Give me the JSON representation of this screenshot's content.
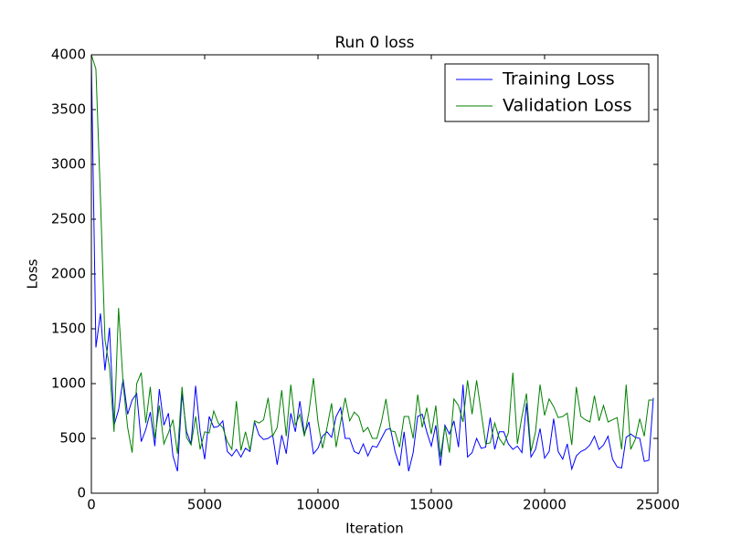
{
  "chart_data": {
    "type": "line",
    "title": "Run 0 loss",
    "x_label": "Iteration",
    "y_label": "Loss",
    "x": [
      0,
      200,
      400,
      600,
      800,
      1000,
      1200,
      1400,
      1600,
      1800,
      2000,
      2200,
      2400,
      2600,
      2800,
      3000,
      3200,
      3400,
      3600,
      3800,
      4000,
      4200,
      4400,
      4600,
      4800,
      5000,
      5200,
      5400,
      5600,
      5800,
      6000,
      6200,
      6400,
      6600,
      6800,
      7000,
      7200,
      7400,
      7600,
      7800,
      8000,
      8200,
      8400,
      8600,
      8800,
      9000,
      9200,
      9400,
      9600,
      9800,
      10000,
      10200,
      10400,
      10600,
      10800,
      11000,
      11200,
      11400,
      11600,
      11800,
      12000,
      12200,
      12400,
      12600,
      12800,
      13000,
      13200,
      13400,
      13600,
      13800,
      14000,
      14200,
      14400,
      14600,
      14800,
      15000,
      15200,
      15400,
      15600,
      15800,
      16000,
      16200,
      16400,
      16600,
      16800,
      17000,
      17200,
      17400,
      17600,
      17800,
      18000,
      18200,
      18400,
      18600,
      18800,
      19000,
      19200,
      19400,
      19600,
      19800,
      20000,
      20200,
      20400,
      20600,
      20800,
      21000,
      21200,
      21400,
      21600,
      21800,
      22000,
      22200,
      22400,
      22600,
      22800,
      23000,
      23200,
      23400,
      23600,
      23800,
      24000,
      24200,
      24400,
      24600,
      24800
    ],
    "series": [
      {
        "name": "Training Loss",
        "color": "#0000ff",
        "values": [
          3950,
          1330,
          1640,
          1120,
          1510,
          620,
          760,
          1040,
          720,
          850,
          910,
          470,
          580,
          740,
          430,
          950,
          620,
          730,
          340,
          200,
          910,
          560,
          450,
          980,
          560,
          310,
          700,
          600,
          610,
          660,
          380,
          340,
          400,
          330,
          410,
          380,
          650,
          530,
          490,
          500,
          530,
          260,
          530,
          360,
          730,
          560,
          840,
          540,
          650,
          360,
          410,
          520,
          560,
          510,
          700,
          780,
          500,
          500,
          380,
          360,
          450,
          340,
          430,
          420,
          500,
          580,
          590,
          380,
          250,
          560,
          200,
          370,
          700,
          720,
          560,
          430,
          620,
          250,
          620,
          540,
          660,
          420,
          990,
          330,
          370,
          500,
          410,
          420,
          690,
          400,
          560,
          560,
          450,
          400,
          430,
          370,
          820,
          330,
          400,
          590,
          320,
          380,
          680,
          380,
          310,
          450,
          220,
          340,
          380,
          400,
          440,
          520,
          400,
          440,
          520,
          310,
          240,
          230,
          510,
          540,
          510,
          500,
          290,
          300,
          870
        ]
      },
      {
        "name": "Validation Loss",
        "color": "#008000",
        "values": [
          4000,
          3870,
          2700,
          1400,
          1150,
          560,
          1690,
          1000,
          600,
          370,
          1000,
          1100,
          640,
          970,
          500,
          800,
          450,
          550,
          670,
          360,
          970,
          510,
          440,
          700,
          400,
          560,
          550,
          750,
          640,
          600,
          470,
          400,
          840,
          390,
          560,
          390,
          660,
          640,
          670,
          870,
          520,
          600,
          940,
          520,
          990,
          620,
          720,
          520,
          740,
          1050,
          650,
          410,
          600,
          820,
          420,
          650,
          870,
          660,
          740,
          700,
          560,
          600,
          500,
          500,
          650,
          860,
          570,
          560,
          420,
          700,
          700,
          500,
          900,
          600,
          780,
          540,
          800,
          330,
          610,
          370,
          860,
          800,
          650,
          1030,
          720,
          1030,
          740,
          450,
          460,
          640,
          500,
          440,
          550,
          1100,
          450,
          700,
          910,
          380,
          560,
          990,
          710,
          860,
          790,
          690,
          700,
          730,
          440,
          970,
          700,
          670,
          650,
          890,
          660,
          800,
          650,
          670,
          690,
          400,
          990,
          400,
          490,
          680,
          520,
          850,
          850
        ]
      }
    ],
    "xlim": [
      0,
      25000
    ],
    "ylim": [
      0,
      4000
    ],
    "xticks": [
      0,
      5000,
      10000,
      15000,
      20000,
      25000
    ],
    "yticks": [
      0,
      500,
      1000,
      1500,
      2000,
      2500,
      3000,
      3500,
      4000
    ],
    "legend": "upper right"
  }
}
